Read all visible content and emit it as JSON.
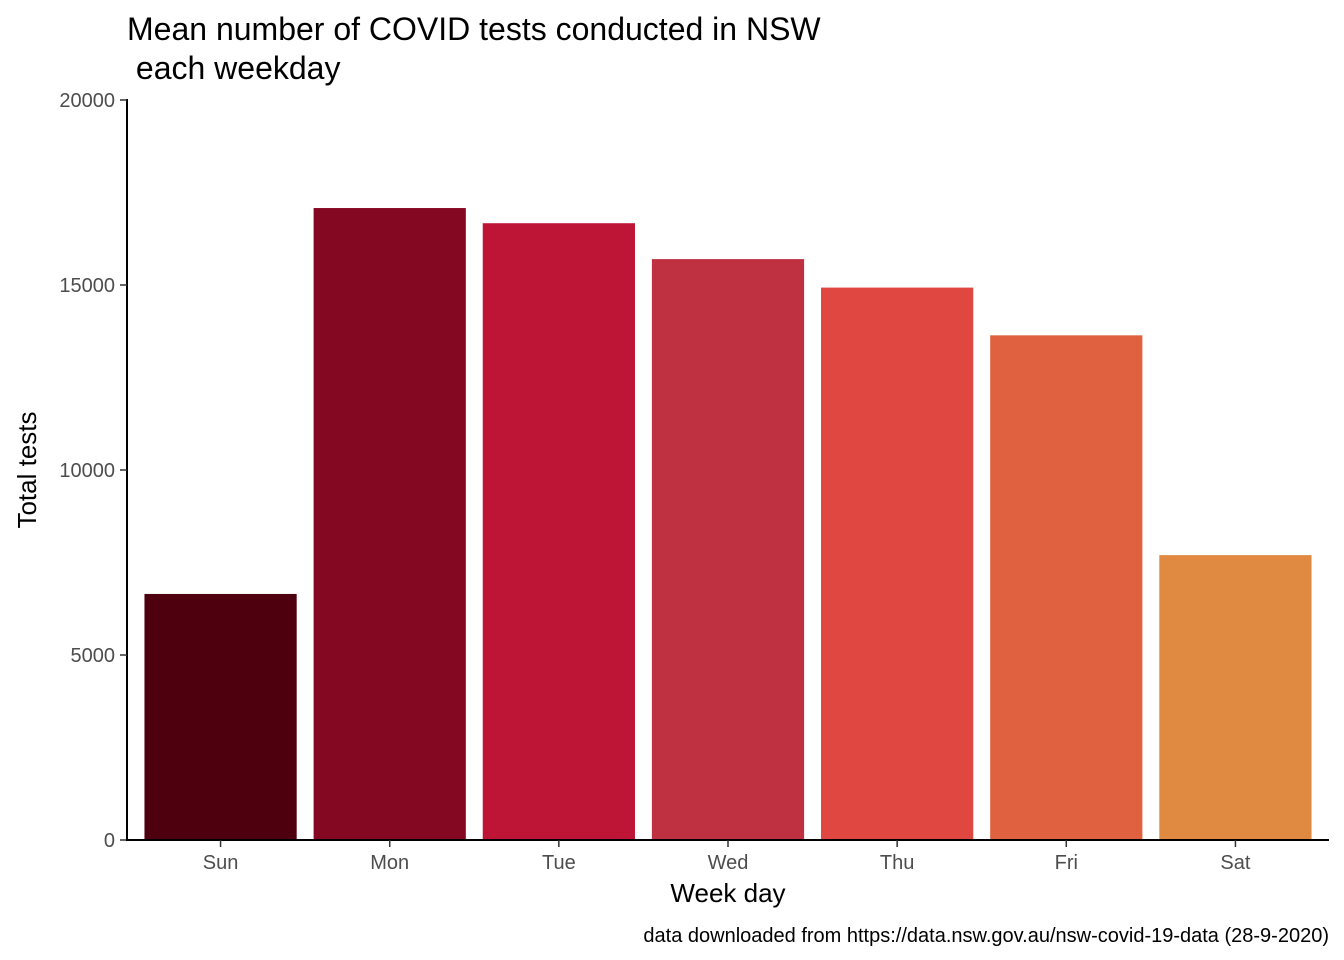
{
  "chart_data": {
    "type": "bar",
    "title_lines": [
      "Mean number of COVID tests conducted in NSW",
      " each weekday"
    ],
    "xlabel": "Week day",
    "ylabel": "Total tests",
    "caption": "data downloaded from https://data.nsw.gov.au/nsw-covid-19-data (28-9-2020)",
    "categories": [
      "Sun",
      "Mon",
      "Tue",
      "Wed",
      "Thu",
      "Fri",
      "Sat"
    ],
    "values": [
      6650,
      17080,
      16670,
      15700,
      14930,
      13640,
      7700
    ],
    "colors": [
      "#4e000f",
      "#850822",
      "#be1537",
      "#bf3140",
      "#df4740",
      "#df6140",
      "#df8a40"
    ],
    "ylim": [
      0,
      20000
    ],
    "yticks": [
      0,
      5000,
      10000,
      15000,
      20000
    ],
    "ytick_labels": [
      "0",
      "5000",
      "10000",
      "15000",
      "20000"
    ],
    "grid": false,
    "legend": "none"
  }
}
